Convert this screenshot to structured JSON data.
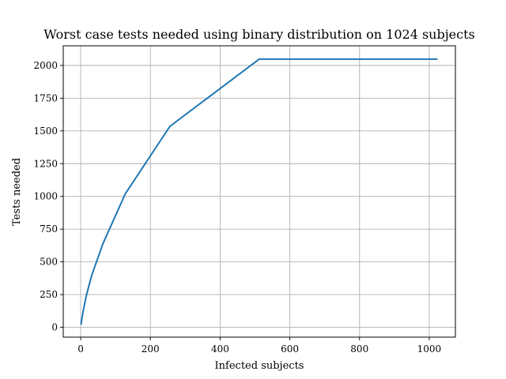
{
  "chart_data": {
    "type": "line",
    "title": "Worst case tests needed using binary distribution on 1024 subjects",
    "xlabel": "Infected subjects",
    "ylabel": "Tests needed",
    "xlim": [
      -50,
      1075
    ],
    "ylim": [
      -75,
      2150
    ],
    "xticks": [
      0,
      200,
      400,
      600,
      800,
      1000
    ],
    "yticks": [
      0,
      250,
      500,
      750,
      1000,
      1250,
      1500,
      1750,
      2000
    ],
    "grid": true,
    "line_color": "#1f77b4",
    "series": [
      {
        "x": [
          1,
          2,
          4,
          8,
          16,
          32,
          64,
          128,
          256,
          512,
          1024
        ],
        "values": [
          20,
          40,
          75,
          135,
          240,
          400,
          640,
          1020,
          1535,
          2048,
          2048
        ]
      }
    ]
  }
}
